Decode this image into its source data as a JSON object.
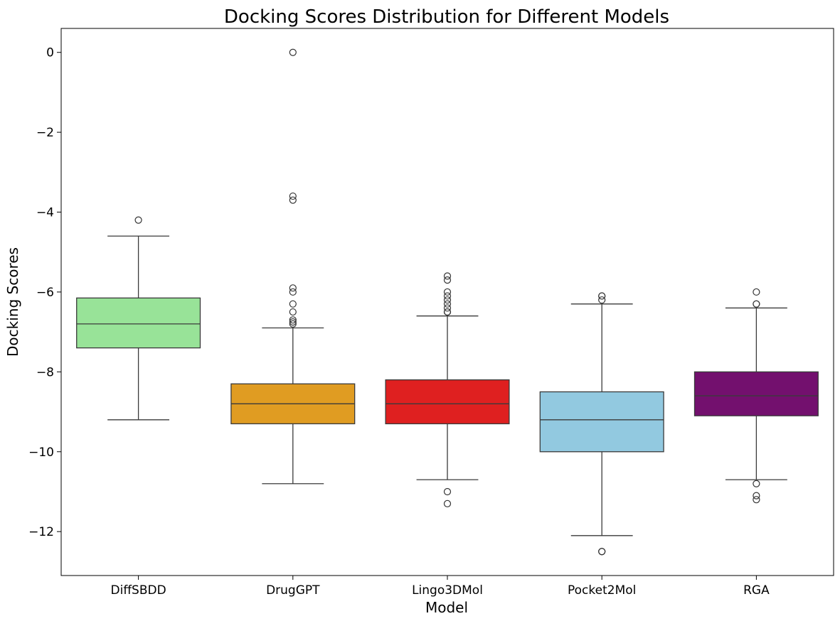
{
  "chart_data": {
    "type": "box",
    "title": "Docking Scores Distribution for Different Models",
    "xlabel": "Model",
    "ylabel": "Docking Scores",
    "ylim": [
      -13.1,
      0.6
    ],
    "yticks": [
      0,
      -2,
      -4,
      -6,
      -8,
      -10,
      -12
    ],
    "ytick_labels": [
      "0",
      "−2",
      "−4",
      "−6",
      "−8",
      "−10",
      "−12"
    ],
    "grid": false,
    "legend": "none",
    "categories": [
      "DiffSBDD",
      "DrugGPT",
      "Lingo3DMol",
      "Pocket2Mol",
      "RGA"
    ],
    "boxes": [
      {
        "category": "DiffSBDD",
        "color": "#98e398",
        "whisker_low": -9.2,
        "q1": -7.4,
        "median": -6.8,
        "q3": -6.15,
        "whisker_high": -4.6,
        "outliers": [
          -4.2
        ]
      },
      {
        "category": "DrugGPT",
        "color": "#e09c22",
        "whisker_low": -10.8,
        "q1": -9.3,
        "median": -8.8,
        "q3": -8.3,
        "whisker_high": -6.9,
        "outliers": [
          0.0,
          -3.6,
          -3.7,
          -5.9,
          -6.0,
          -6.3,
          -6.5,
          -6.7,
          -6.75,
          -6.8
        ]
      },
      {
        "category": "Lingo3DMol",
        "color": "#df2020",
        "whisker_low": -10.7,
        "q1": -9.3,
        "median": -8.8,
        "q3": -8.2,
        "whisker_high": -6.6,
        "outliers": [
          -5.6,
          -5.7,
          -6.0,
          -6.1,
          -6.2,
          -6.3,
          -6.4,
          -6.5,
          -6.5,
          -11.0,
          -11.3
        ]
      },
      {
        "category": "Pocket2Mol",
        "color": "#92c9e0",
        "whisker_low": -12.1,
        "q1": -10.0,
        "median": -9.2,
        "q3": -8.5,
        "whisker_high": -6.3,
        "outliers": [
          -6.1,
          -6.1,
          -6.2,
          -12.5,
          -12.5
        ]
      },
      {
        "category": "RGA",
        "color": "#73106e",
        "whisker_low": -10.7,
        "q1": -9.1,
        "median": -8.6,
        "q3": -8.0,
        "whisker_high": -6.4,
        "outliers": [
          -6.0,
          -6.3,
          -6.3,
          -10.8,
          -11.1,
          -11.2
        ]
      }
    ]
  }
}
